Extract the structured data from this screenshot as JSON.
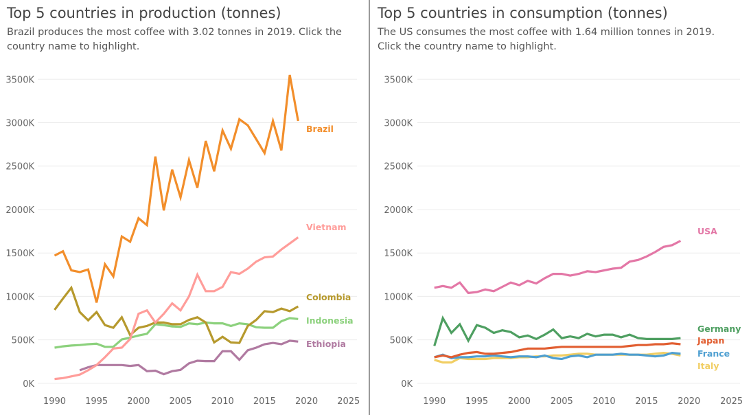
{
  "chart_data": [
    {
      "type": "line",
      "title": "Top 5 countries in production (tonnes)",
      "subtitle": "Brazil produces the most coffee with 3.02 tonnes in 2019. Click the country name to highlight.",
      "xlabel": "",
      "ylabel": "",
      "xlim": [
        1988,
        2026
      ],
      "ylim": [
        -80000,
        3700000
      ],
      "x_ticks": [
        1990,
        1995,
        2000,
        2005,
        2010,
        2015,
        2020,
        2025
      ],
      "x_tick_labels": [
        "1990",
        "1995",
        "2000",
        "2005",
        "2010",
        "2015",
        "2020",
        "2025"
      ],
      "y_ticks": [
        0,
        500000,
        1000000,
        1500000,
        2000000,
        2500000,
        3000000,
        3500000
      ],
      "y_tick_labels": [
        "0K",
        "500K",
        "1000K",
        "1500K",
        "2000K",
        "2500K",
        "3000K",
        "3500K"
      ],
      "grid": "horizontal",
      "series": [
        {
          "name": "Ethiopia",
          "color": "#b07aa1",
          "start": 1993,
          "values": [
            150000,
            185000,
            210000,
            210000,
            210000,
            210000,
            200000,
            210000,
            140000,
            145000,
            105000,
            140000,
            155000,
            230000,
            260000,
            255000,
            255000,
            370000,
            370000,
            270000,
            380000,
            410000,
            450000,
            465000,
            450000,
            490000,
            480000
          ]
        },
        {
          "name": "Indonesia",
          "color": "#8cd17d",
          "start": 1990,
          "values": [
            410000,
            425000,
            435000,
            440000,
            450000,
            455000,
            420000,
            420000,
            505000,
            525000,
            550000,
            570000,
            680000,
            670000,
            655000,
            650000,
            690000,
            680000,
            700000,
            690000,
            690000,
            660000,
            690000,
            680000,
            645000,
            640000,
            640000,
            715000,
            750000,
            740000
          ]
        },
        {
          "name": "Colombia",
          "color": "#b6992d",
          "start": 1990,
          "values": [
            845000,
            975000,
            1100000,
            820000,
            725000,
            820000,
            670000,
            640000,
            760000,
            555000,
            640000,
            660000,
            700000,
            700000,
            680000,
            680000,
            730000,
            760000,
            700000,
            470000,
            535000,
            470000,
            465000,
            660000,
            730000,
            830000,
            820000,
            860000,
            830000,
            885000
          ]
        },
        {
          "name": "Vietnam",
          "color": "#ff9d9a",
          "start": 1990,
          "values": [
            50000,
            60000,
            80000,
            100000,
            150000,
            210000,
            300000,
            400000,
            410000,
            510000,
            800000,
            840000,
            700000,
            800000,
            920000,
            840000,
            1000000,
            1250000,
            1060000,
            1060000,
            1110000,
            1280000,
            1260000,
            1320000,
            1400000,
            1450000,
            1460000,
            1540000,
            1610000,
            1680000
          ]
        },
        {
          "name": "Brazil",
          "color": "#f28e2b",
          "start": 1990,
          "values": [
            1470000,
            1520000,
            1300000,
            1280000,
            1310000,
            930000,
            1370000,
            1230000,
            1690000,
            1630000,
            1900000,
            1820000,
            2610000,
            1990000,
            2460000,
            2140000,
            2570000,
            2250000,
            2790000,
            2440000,
            2910000,
            2700000,
            3040000,
            2970000,
            2810000,
            2650000,
            3020000,
            2680000,
            3550000,
            3020000
          ]
        }
      ],
      "label_order": [
        "Brazil",
        "Vietnam",
        "Colombia",
        "Indonesia",
        "Ethiopia"
      ]
    },
    {
      "type": "line",
      "title": "Top 5 countries in consumption (tonnes)",
      "subtitle": "The US consumes the most coffee with 1.64 million tonnes in 2019. Click the country name to highlight.",
      "xlabel": "",
      "ylabel": "",
      "xlim": [
        1988,
        2026
      ],
      "ylim": [
        -80000,
        3700000
      ],
      "x_ticks": [
        1990,
        1995,
        2000,
        2005,
        2010,
        2015,
        2020,
        2025
      ],
      "x_tick_labels": [
        "1990",
        "1995",
        "2000",
        "2005",
        "2010",
        "2015",
        "2020",
        "2025"
      ],
      "y_ticks": [
        0,
        500000,
        1000000,
        1500000,
        2000000,
        2500000,
        3000000,
        3500000
      ],
      "y_tick_labels": [
        "0K",
        "500K",
        "1000K",
        "1500K",
        "2000K",
        "2500K",
        "3000K",
        "3500K"
      ],
      "grid": "horizontal",
      "series": [
        {
          "name": "Italy",
          "color": "#f1ce63",
          "start": 1990,
          "values": [
            270000,
            240000,
            240000,
            290000,
            280000,
            280000,
            280000,
            290000,
            290000,
            290000,
            300000,
            300000,
            310000,
            310000,
            320000,
            320000,
            330000,
            340000,
            340000,
            330000,
            330000,
            330000,
            330000,
            330000,
            330000,
            330000,
            340000,
            350000,
            340000,
            320000
          ]
        },
        {
          "name": "France",
          "color": "#4e9fd1",
          "start": 1990,
          "values": [
            300000,
            330000,
            290000,
            300000,
            300000,
            310000,
            310000,
            320000,
            310000,
            300000,
            310000,
            310000,
            300000,
            320000,
            290000,
            280000,
            310000,
            320000,
            300000,
            330000,
            330000,
            330000,
            340000,
            330000,
            330000,
            320000,
            310000,
            320000,
            350000,
            340000
          ]
        },
        {
          "name": "Japan",
          "color": "#e15e31",
          "start": 1990,
          "values": [
            300000,
            320000,
            300000,
            330000,
            350000,
            360000,
            340000,
            340000,
            350000,
            360000,
            380000,
            400000,
            400000,
            400000,
            410000,
            420000,
            420000,
            420000,
            420000,
            420000,
            420000,
            420000,
            420000,
            430000,
            440000,
            440000,
            450000,
            450000,
            460000,
            450000
          ]
        },
        {
          "name": "Germany",
          "color": "#4e9f61",
          "start": 1990,
          "values": [
            430000,
            750000,
            580000,
            680000,
            490000,
            670000,
            640000,
            580000,
            610000,
            590000,
            530000,
            550000,
            510000,
            560000,
            620000,
            520000,
            540000,
            520000,
            570000,
            540000,
            560000,
            560000,
            530000,
            560000,
            520000,
            510000,
            510000,
            510000,
            510000,
            520000
          ]
        },
        {
          "name": "USA",
          "color": "#e377a6",
          "start": 1990,
          "values": [
            1100000,
            1120000,
            1100000,
            1160000,
            1040000,
            1050000,
            1080000,
            1060000,
            1110000,
            1160000,
            1130000,
            1180000,
            1150000,
            1210000,
            1260000,
            1260000,
            1240000,
            1260000,
            1290000,
            1280000,
            1300000,
            1320000,
            1330000,
            1400000,
            1420000,
            1460000,
            1510000,
            1570000,
            1590000,
            1640000
          ]
        }
      ],
      "label_order": [
        "USA",
        "Germany",
        "Japan",
        "France",
        "Italy"
      ]
    }
  ]
}
